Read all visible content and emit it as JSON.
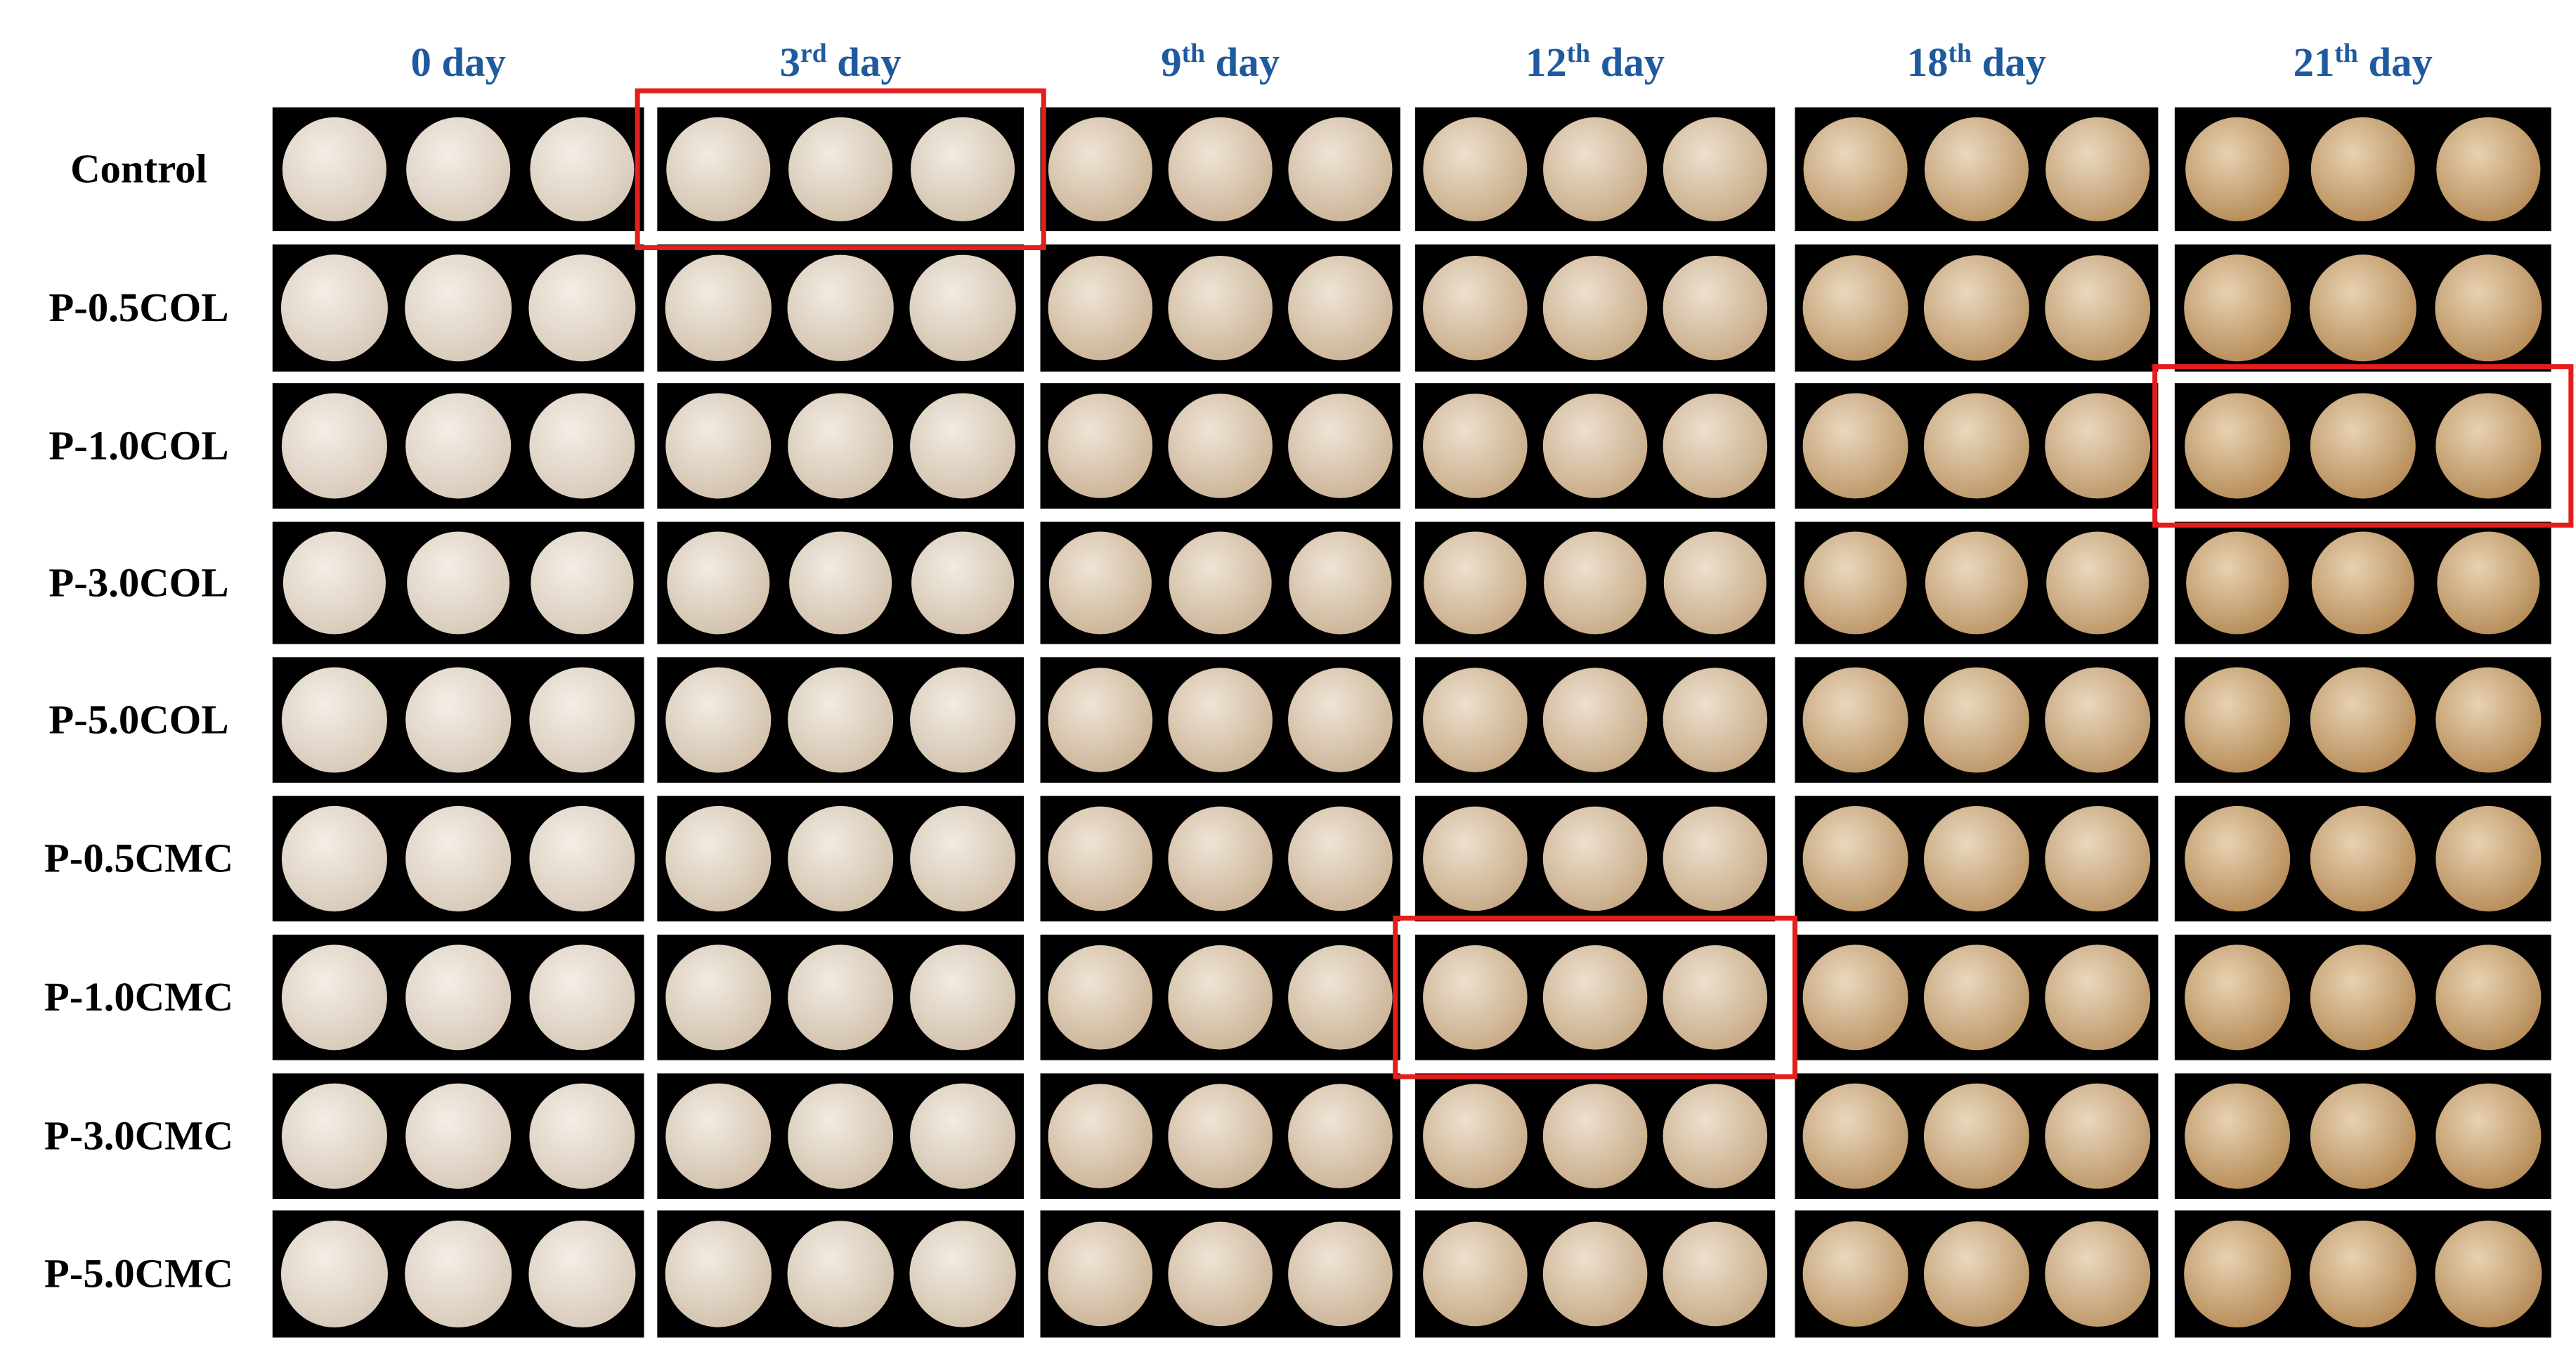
{
  "columns": [
    {
      "text": "0 day"
    },
    {
      "pre": "3",
      "sup": "rd",
      "post": " day"
    },
    {
      "pre": "9",
      "sup": "th",
      "post": " day"
    },
    {
      "pre": "12",
      "sup": "th",
      "post": " day"
    },
    {
      "pre": "18",
      "sup": "th",
      "post": " day"
    },
    {
      "pre": "21",
      "sup": "th",
      "post": " day"
    }
  ],
  "rows": [
    "Control",
    "P-0.5COL",
    "P-1.0COL",
    "P-3.0COL",
    "P-5.0COL",
    "P-0.5CMC",
    "P-1.0CMC",
    "P-3.0CMC",
    "P-5.0CMC"
  ],
  "highlights": [
    {
      "row": 0,
      "col": 1
    },
    {
      "row": 2,
      "col": 5
    },
    {
      "row": 6,
      "col": 3
    }
  ]
}
